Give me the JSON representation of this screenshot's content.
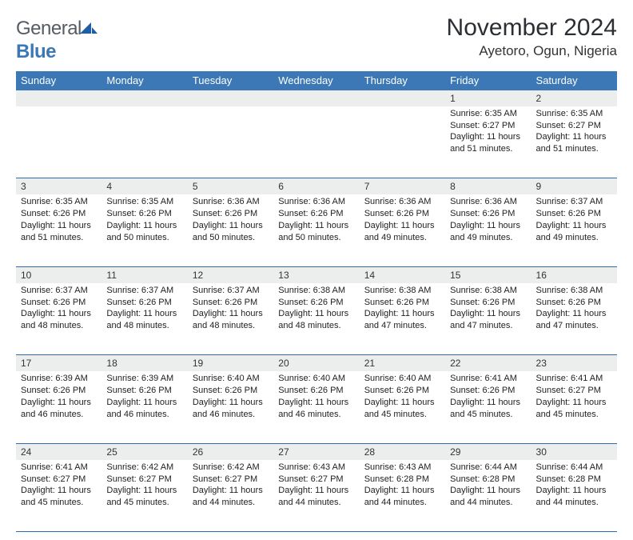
{
  "brand": {
    "part1": "General",
    "part2": "Blue"
  },
  "title": "November 2024",
  "location": "Ayetoro, Ogun, Nigeria",
  "colors": {
    "header_bg": "#3b78b5",
    "header_text": "#ffffff",
    "daynum_bg": "#eceded",
    "border": "#2f6ba8",
    "brand_gray": "#555c63",
    "brand_blue": "#3b78b5"
  },
  "weekdays": [
    "Sunday",
    "Monday",
    "Tuesday",
    "Wednesday",
    "Thursday",
    "Friday",
    "Saturday"
  ],
  "first_weekday_index": 5,
  "days": [
    {
      "n": 1,
      "sunrise": "6:35 AM",
      "sunset": "6:27 PM",
      "daylight": "11 hours and 51 minutes."
    },
    {
      "n": 2,
      "sunrise": "6:35 AM",
      "sunset": "6:27 PM",
      "daylight": "11 hours and 51 minutes."
    },
    {
      "n": 3,
      "sunrise": "6:35 AM",
      "sunset": "6:26 PM",
      "daylight": "11 hours and 51 minutes."
    },
    {
      "n": 4,
      "sunrise": "6:35 AM",
      "sunset": "6:26 PM",
      "daylight": "11 hours and 50 minutes."
    },
    {
      "n": 5,
      "sunrise": "6:36 AM",
      "sunset": "6:26 PM",
      "daylight": "11 hours and 50 minutes."
    },
    {
      "n": 6,
      "sunrise": "6:36 AM",
      "sunset": "6:26 PM",
      "daylight": "11 hours and 50 minutes."
    },
    {
      "n": 7,
      "sunrise": "6:36 AM",
      "sunset": "6:26 PM",
      "daylight": "11 hours and 49 minutes."
    },
    {
      "n": 8,
      "sunrise": "6:36 AM",
      "sunset": "6:26 PM",
      "daylight": "11 hours and 49 minutes."
    },
    {
      "n": 9,
      "sunrise": "6:37 AM",
      "sunset": "6:26 PM",
      "daylight": "11 hours and 49 minutes."
    },
    {
      "n": 10,
      "sunrise": "6:37 AM",
      "sunset": "6:26 PM",
      "daylight": "11 hours and 48 minutes."
    },
    {
      "n": 11,
      "sunrise": "6:37 AM",
      "sunset": "6:26 PM",
      "daylight": "11 hours and 48 minutes."
    },
    {
      "n": 12,
      "sunrise": "6:37 AM",
      "sunset": "6:26 PM",
      "daylight": "11 hours and 48 minutes."
    },
    {
      "n": 13,
      "sunrise": "6:38 AM",
      "sunset": "6:26 PM",
      "daylight": "11 hours and 48 minutes."
    },
    {
      "n": 14,
      "sunrise": "6:38 AM",
      "sunset": "6:26 PM",
      "daylight": "11 hours and 47 minutes."
    },
    {
      "n": 15,
      "sunrise": "6:38 AM",
      "sunset": "6:26 PM",
      "daylight": "11 hours and 47 minutes."
    },
    {
      "n": 16,
      "sunrise": "6:38 AM",
      "sunset": "6:26 PM",
      "daylight": "11 hours and 47 minutes."
    },
    {
      "n": 17,
      "sunrise": "6:39 AM",
      "sunset": "6:26 PM",
      "daylight": "11 hours and 46 minutes."
    },
    {
      "n": 18,
      "sunrise": "6:39 AM",
      "sunset": "6:26 PM",
      "daylight": "11 hours and 46 minutes."
    },
    {
      "n": 19,
      "sunrise": "6:40 AM",
      "sunset": "6:26 PM",
      "daylight": "11 hours and 46 minutes."
    },
    {
      "n": 20,
      "sunrise": "6:40 AM",
      "sunset": "6:26 PM",
      "daylight": "11 hours and 46 minutes."
    },
    {
      "n": 21,
      "sunrise": "6:40 AM",
      "sunset": "6:26 PM",
      "daylight": "11 hours and 45 minutes."
    },
    {
      "n": 22,
      "sunrise": "6:41 AM",
      "sunset": "6:26 PM",
      "daylight": "11 hours and 45 minutes."
    },
    {
      "n": 23,
      "sunrise": "6:41 AM",
      "sunset": "6:27 PM",
      "daylight": "11 hours and 45 minutes."
    },
    {
      "n": 24,
      "sunrise": "6:41 AM",
      "sunset": "6:27 PM",
      "daylight": "11 hours and 45 minutes."
    },
    {
      "n": 25,
      "sunrise": "6:42 AM",
      "sunset": "6:27 PM",
      "daylight": "11 hours and 45 minutes."
    },
    {
      "n": 26,
      "sunrise": "6:42 AM",
      "sunset": "6:27 PM",
      "daylight": "11 hours and 44 minutes."
    },
    {
      "n": 27,
      "sunrise": "6:43 AM",
      "sunset": "6:27 PM",
      "daylight": "11 hours and 44 minutes."
    },
    {
      "n": 28,
      "sunrise": "6:43 AM",
      "sunset": "6:28 PM",
      "daylight": "11 hours and 44 minutes."
    },
    {
      "n": 29,
      "sunrise": "6:44 AM",
      "sunset": "6:28 PM",
      "daylight": "11 hours and 44 minutes."
    },
    {
      "n": 30,
      "sunrise": "6:44 AM",
      "sunset": "6:28 PM",
      "daylight": "11 hours and 44 minutes."
    }
  ],
  "labels": {
    "sunrise": "Sunrise:",
    "sunset": "Sunset:",
    "daylight": "Daylight:"
  }
}
